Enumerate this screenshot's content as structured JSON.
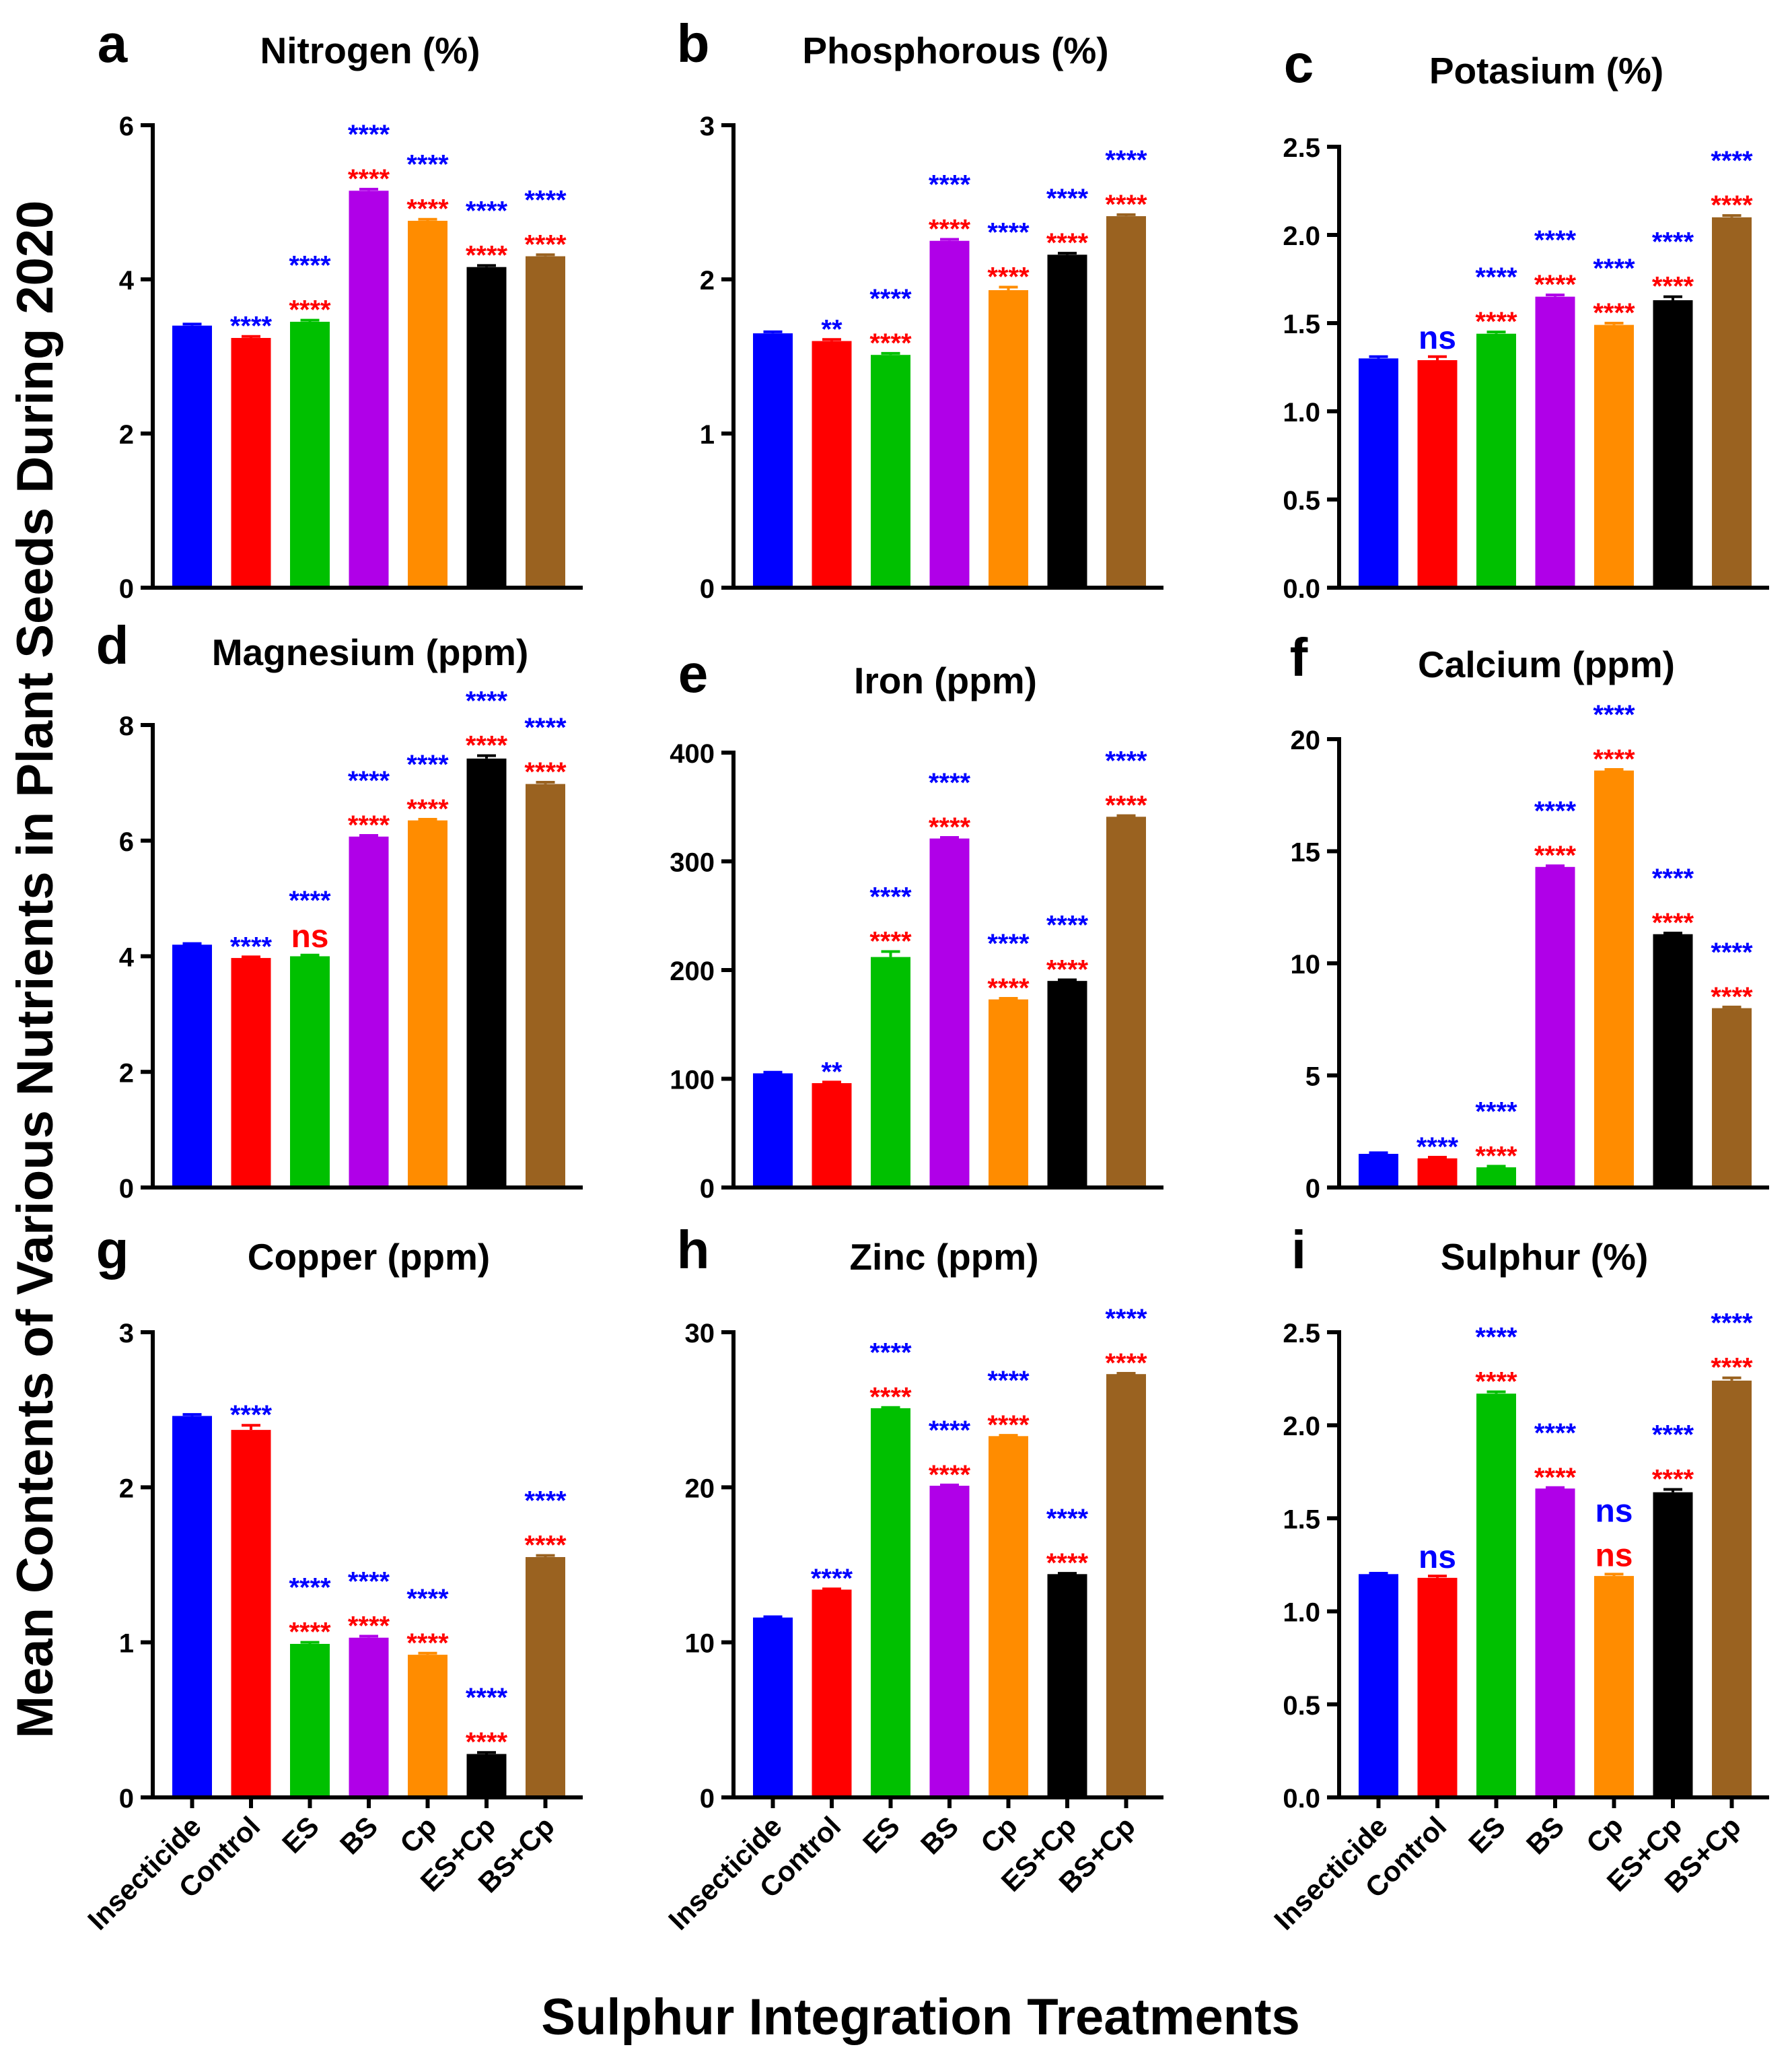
{
  "figure": {
    "y_axis_label": "Mean Contents of Various Nutrients in Plant Seeds During 2020",
    "x_axis_label": "Sulphur Integration Treatments",
    "colors": {
      "bars": [
        "#0000ff",
        "#ff0000",
        "#00c000",
        "#b000e8",
        "#ff8c00",
        "#000000",
        "#9a6220"
      ],
      "sig_blue": "#0000ff",
      "sig_red": "#ff0000"
    }
  },
  "chart_data": [
    {
      "type": "bar",
      "panel": "a",
      "title": "Nitrogen (%)",
      "categories": [
        "Insecticide",
        "Control",
        "ES",
        "BS",
        "Cp",
        "ES+Cp",
        "BS+Cp"
      ],
      "values": [
        3.4,
        3.24,
        3.45,
        5.15,
        4.76,
        4.16,
        4.3
      ],
      "errors": [
        0.02,
        0.02,
        0.02,
        0.02,
        0.02,
        0.02,
        0.02
      ],
      "ylim": [
        0,
        6
      ],
      "yticks": [
        "0",
        "2",
        "4",
        "6"
      ],
      "sig_blue": [
        "",
        "****",
        "****",
        "****",
        "****",
        "****",
        "****"
      ],
      "sig_red": [
        "",
        "",
        "****",
        "****",
        "****",
        "****",
        "****"
      ]
    },
    {
      "type": "bar",
      "panel": "b",
      "title": "Phosphorous (%)",
      "categories": [
        "Insecticide",
        "Control",
        "ES",
        "BS",
        "Cp",
        "ES+Cp",
        "BS+Cp"
      ],
      "values": [
        1.65,
        1.6,
        1.51,
        2.25,
        1.93,
        2.16,
        2.41
      ],
      "errors": [
        0.01,
        0.01,
        0.01,
        0.01,
        0.02,
        0.01,
        0.01
      ],
      "ylim": [
        0,
        3
      ],
      "yticks": [
        "0",
        "1",
        "2",
        "3"
      ],
      "sig_blue": [
        "",
        "**",
        "****",
        "****",
        "****",
        "****",
        "****"
      ],
      "sig_red": [
        "",
        "",
        "****",
        "****",
        "****",
        "****",
        "****"
      ]
    },
    {
      "type": "bar",
      "panel": "c",
      "title": "Potasium (%)",
      "categories": [
        "Insecticide",
        "Control",
        "ES",
        "BS",
        "Cp",
        "ES+Cp",
        "BS+Cp"
      ],
      "values": [
        1.3,
        1.29,
        1.44,
        1.65,
        1.49,
        1.63,
        2.1
      ],
      "errors": [
        0.01,
        0.02,
        0.01,
        0.01,
        0.01,
        0.02,
        0.01
      ],
      "ylim": [
        0,
        2.5
      ],
      "yticks": [
        "0.0",
        "0.5",
        "1.0",
        "1.5",
        "2.0",
        "2.5"
      ],
      "sig_blue": [
        "",
        "ns",
        "****",
        "****",
        "****",
        "****",
        "****"
      ],
      "sig_red": [
        "",
        "",
        "****",
        "****",
        "****",
        "****",
        "****"
      ]
    },
    {
      "type": "bar",
      "panel": "d",
      "title": "Magnesium (ppm)",
      "categories": [
        "Insecticide",
        "Control",
        "ES",
        "BS",
        "Cp",
        "ES+Cp",
        "BS+Cp"
      ],
      "values": [
        4.2,
        3.97,
        4.0,
        6.07,
        6.35,
        7.42,
        6.98
      ],
      "errors": [
        0.02,
        0.02,
        0.02,
        0.02,
        0.02,
        0.05,
        0.03
      ],
      "ylim": [
        0,
        8
      ],
      "yticks": [
        "0",
        "2",
        "4",
        "6",
        "8"
      ],
      "sig_blue": [
        "",
        "****",
        "****",
        "****",
        "****",
        "****",
        "****"
      ],
      "sig_red": [
        "",
        "",
        "ns",
        "****",
        "****",
        "****",
        "****"
      ]
    },
    {
      "type": "bar",
      "panel": "e",
      "title": "Iron (ppm)",
      "categories": [
        "Insecticide",
        "Control",
        "ES",
        "BS",
        "Cp",
        "ES+Cp",
        "BS+Cp"
      ],
      "values": [
        105,
        96,
        212,
        321,
        173,
        190,
        341
      ],
      "errors": [
        1,
        1,
        5,
        1,
        1,
        1,
        1
      ],
      "ylim": [
        0,
        400
      ],
      "yticks": [
        "0",
        "100",
        "200",
        "300",
        "400"
      ],
      "sig_blue": [
        "",
        "**",
        "****",
        "****",
        "****",
        "****",
        "****"
      ],
      "sig_red": [
        "",
        "",
        "****",
        "****",
        "****",
        "****",
        "****"
      ]
    },
    {
      "type": "bar",
      "panel": "f",
      "title": "Calcium (ppm)",
      "categories": [
        "Insecticide",
        "Control",
        "ES",
        "BS",
        "Cp",
        "ES+Cp",
        "BS+Cp"
      ],
      "values": [
        1.5,
        1.3,
        0.9,
        14.3,
        18.6,
        11.3,
        8.0
      ],
      "errors": [
        0.05,
        0.05,
        0.05,
        0.05,
        0.05,
        0.05,
        0.05
      ],
      "ylim": [
        0,
        20
      ],
      "yticks": [
        "0",
        "5",
        "10",
        "15",
        "20"
      ],
      "sig_blue": [
        "",
        "****",
        "****",
        "****",
        "****",
        "****",
        "****"
      ],
      "sig_red": [
        "",
        "",
        "****",
        "****",
        "****",
        "****",
        "****"
      ]
    },
    {
      "type": "bar",
      "panel": "g",
      "title": "Copper (ppm)",
      "categories": [
        "Insecticide",
        "Control",
        "ES",
        "BS",
        "Cp",
        "ES+Cp",
        "BS+Cp"
      ],
      "values": [
        2.46,
        2.37,
        0.99,
        1.03,
        0.92,
        0.28,
        1.55
      ],
      "errors": [
        0.01,
        0.03,
        0.01,
        0.01,
        0.01,
        0.01,
        0.01
      ],
      "ylim": [
        0,
        3
      ],
      "yticks": [
        "0",
        "1",
        "2",
        "3"
      ],
      "sig_blue": [
        "",
        "****",
        "****",
        "****",
        "****",
        "****",
        "****"
      ],
      "sig_red": [
        "",
        "",
        "****",
        "****",
        "****",
        "****",
        "****"
      ]
    },
    {
      "type": "bar",
      "panel": "h",
      "title": "Zinc (ppm)",
      "categories": [
        "Insecticide",
        "Control",
        "ES",
        "BS",
        "Cp",
        "ES+Cp",
        "BS+Cp"
      ],
      "values": [
        11.6,
        13.4,
        25.1,
        20.1,
        23.3,
        14.4,
        27.3
      ],
      "errors": [
        0.05,
        0.05,
        0.05,
        0.05,
        0.05,
        0.05,
        0.05
      ],
      "ylim": [
        0,
        30
      ],
      "yticks": [
        "0",
        "10",
        "20",
        "30"
      ],
      "sig_blue": [
        "",
        "****",
        "****",
        "****",
        "****",
        "****",
        "****"
      ],
      "sig_red": [
        "",
        "",
        "****",
        "****",
        "****",
        "****",
        "****"
      ]
    },
    {
      "type": "bar",
      "panel": "i",
      "title": "Sulphur (%)",
      "categories": [
        "Insecticide",
        "Control",
        "ES",
        "BS",
        "Cp",
        "ES+Cp",
        "BS+Cp"
      ],
      "values": [
        1.2,
        1.18,
        2.17,
        1.66,
        1.19,
        1.64,
        2.24
      ],
      "errors": [
        0.005,
        0.01,
        0.01,
        0.005,
        0.01,
        0.015,
        0.015
      ],
      "ylim": [
        0,
        2.5
      ],
      "yticks": [
        "0.0",
        "0.5",
        "1.0",
        "1.5",
        "2.0",
        "2.5"
      ],
      "sig_blue": [
        "",
        "ns",
        "****",
        "****",
        "ns",
        "****",
        "****"
      ],
      "sig_red": [
        "",
        "",
        "****",
        "****",
        "ns",
        "****",
        "****"
      ]
    }
  ]
}
